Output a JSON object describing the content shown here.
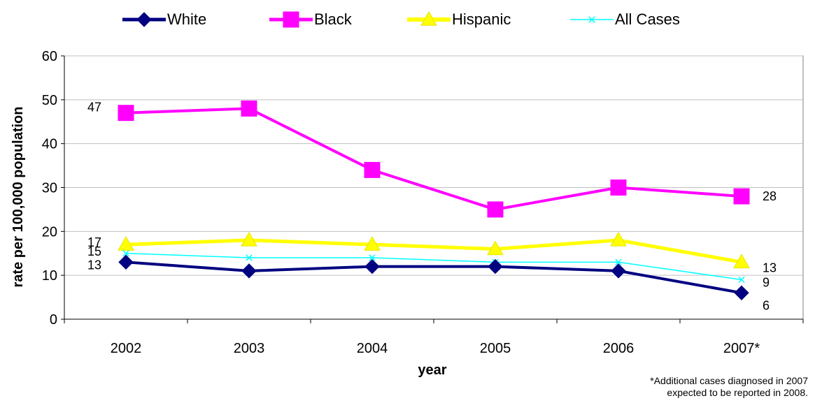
{
  "chart_data": {
    "type": "line",
    "title": "",
    "xlabel": "year",
    "ylabel": "rate per 100,000 population",
    "categories": [
      "2002",
      "2003",
      "2004",
      "2005",
      "2006",
      "2007*"
    ],
    "ylim": [
      0,
      60
    ],
    "yticks": [
      "0",
      "10",
      "20",
      "30",
      "40",
      "50",
      "60"
    ],
    "grid": true,
    "legend_position": "top",
    "series": [
      {
        "name": "White",
        "values": [
          13,
          11,
          12,
          12,
          11,
          6
        ],
        "color": "#000080",
        "marker": "diamond",
        "labels": {
          "0": "13",
          "5": "6"
        }
      },
      {
        "name": "Black",
        "values": [
          47,
          48,
          34,
          25,
          30,
          28
        ],
        "color": "#ff00ff",
        "marker": "square",
        "labels": {
          "0": "47",
          "5": "28"
        }
      },
      {
        "name": "Hispanic",
        "values": [
          17,
          18,
          17,
          16,
          18,
          13
        ],
        "color": "#ffff00",
        "marker": "triangle",
        "labels": {
          "0": "17",
          "5": "13"
        }
      },
      {
        "name": "All Cases",
        "values": [
          15,
          14,
          14,
          13,
          13,
          9
        ],
        "color": "#00ffff",
        "marker": "x",
        "labels": {
          "0": "15",
          "5": "9"
        }
      }
    ]
  },
  "footnote": {
    "line1": "*Additional cases diagnosed in 2007",
    "line2": "expected to be reported in 2008."
  }
}
